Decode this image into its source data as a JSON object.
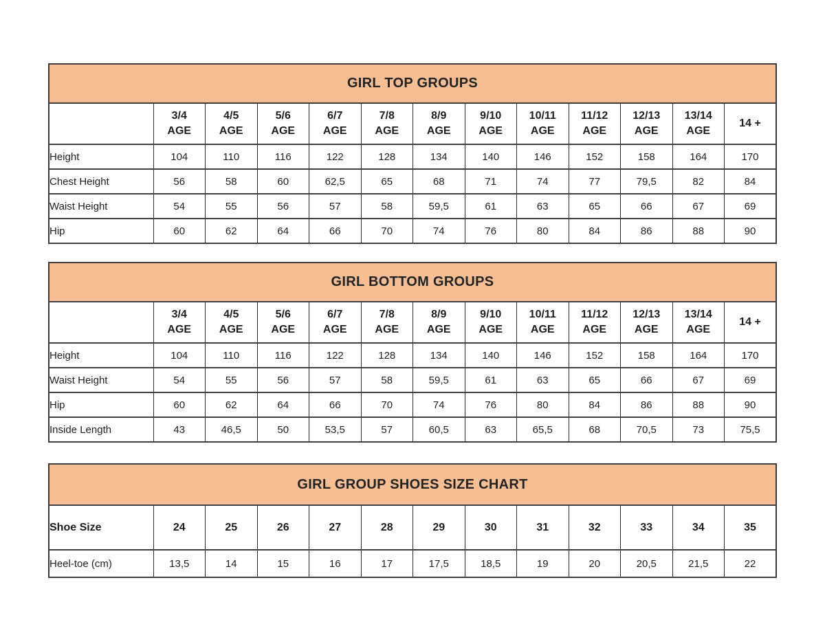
{
  "colors": {
    "page_bg": "#ffffff",
    "title_bar_bg": "#f7be93",
    "border": "#3a3a3a",
    "text": "#1e1e1e"
  },
  "chart_data": [
    {
      "type": "table",
      "title": "GIRL TOP GROUPS",
      "columns": [
        {
          "top": "3/4",
          "bottom": "AGE"
        },
        {
          "top": "4/5",
          "bottom": "AGE"
        },
        {
          "top": "5/6",
          "bottom": "AGE"
        },
        {
          "top": "6/7",
          "bottom": "AGE"
        },
        {
          "top": "7/8",
          "bottom": "AGE"
        },
        {
          "top": "8/9",
          "bottom": "AGE"
        },
        {
          "top": "9/10",
          "bottom": "AGE"
        },
        {
          "top": "10/11",
          "bottom": "AGE"
        },
        {
          "top": "11/12",
          "bottom": "AGE"
        },
        {
          "top": "12/13",
          "bottom": "AGE"
        },
        {
          "top": "13/14",
          "bottom": "AGE"
        },
        {
          "top": "14 +",
          "bottom": ""
        }
      ],
      "rows": [
        {
          "label": "Height",
          "values": [
            "104",
            "110",
            "116",
            "122",
            "128",
            "134",
            "140",
            "146",
            "152",
            "158",
            "164",
            "170"
          ]
        },
        {
          "label": "Chest Height",
          "values": [
            "56",
            "58",
            "60",
            "62,5",
            "65",
            "68",
            "71",
            "74",
            "77",
            "79,5",
            "82",
            "84"
          ]
        },
        {
          "label": "Waist Height",
          "values": [
            "54",
            "55",
            "56",
            "57",
            "58",
            "59,5",
            "61",
            "63",
            "65",
            "66",
            "67",
            "69"
          ]
        },
        {
          "label": "Hip",
          "values": [
            "60",
            "62",
            "64",
            "66",
            "70",
            "74",
            "76",
            "80",
            "84",
            "86",
            "88",
            "90"
          ]
        }
      ]
    },
    {
      "type": "table",
      "title": "GIRL BOTTOM GROUPS",
      "columns": [
        {
          "top": "3/4",
          "bottom": "AGE"
        },
        {
          "top": "4/5",
          "bottom": "AGE"
        },
        {
          "top": "5/6",
          "bottom": "AGE"
        },
        {
          "top": "6/7",
          "bottom": "AGE"
        },
        {
          "top": "7/8",
          "bottom": "AGE"
        },
        {
          "top": "8/9",
          "bottom": "AGE"
        },
        {
          "top": "9/10",
          "bottom": "AGE"
        },
        {
          "top": "10/11",
          "bottom": "AGE"
        },
        {
          "top": "11/12",
          "bottom": "AGE"
        },
        {
          "top": "12/13",
          "bottom": "AGE"
        },
        {
          "top": "13/14",
          "bottom": "AGE"
        },
        {
          "top": "14 +",
          "bottom": ""
        }
      ],
      "rows": [
        {
          "label": "Height",
          "values": [
            "104",
            "110",
            "116",
            "122",
            "128",
            "134",
            "140",
            "146",
            "152",
            "158",
            "164",
            "170"
          ]
        },
        {
          "label": "Waist Height",
          "values": [
            "54",
            "55",
            "56",
            "57",
            "58",
            "59,5",
            "61",
            "63",
            "65",
            "66",
            "67",
            "69"
          ]
        },
        {
          "label": "Hip",
          "values": [
            "60",
            "62",
            "64",
            "66",
            "70",
            "74",
            "76",
            "80",
            "84",
            "86",
            "88",
            "90"
          ]
        },
        {
          "label": "Inside Length",
          "values": [
            "43",
            "46,5",
            "50",
            "53,5",
            "57",
            "60,5",
            "63",
            "65,5",
            "68",
            "70,5",
            "73",
            "75,5"
          ]
        }
      ]
    },
    {
      "type": "table",
      "title": "GIRL GROUP SHOES SIZE CHART",
      "columns": null,
      "rows": [
        {
          "label": "Shoe Size",
          "style": "shoe-row",
          "values": [
            "24",
            "25",
            "26",
            "27",
            "28",
            "29",
            "30",
            "31",
            "32",
            "33",
            "34",
            "35"
          ]
        },
        {
          "label": "Heel-toe (cm)",
          "style": "heel-row",
          "values": [
            "13,5",
            "14",
            "15",
            "16",
            "17",
            "17,5",
            "18,5",
            "19",
            "20",
            "20,5",
            "21,5",
            "22"
          ]
        }
      ]
    }
  ]
}
